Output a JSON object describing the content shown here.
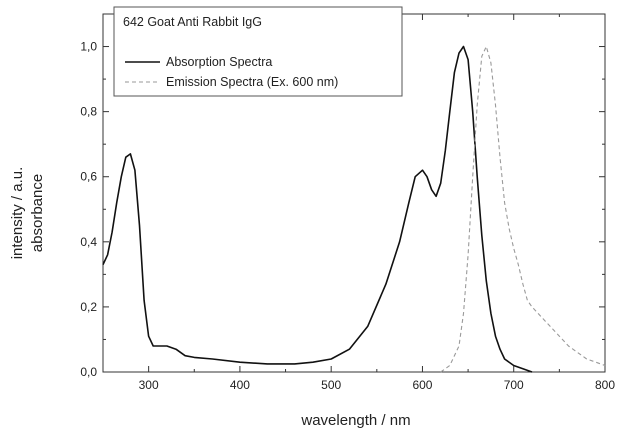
{
  "chart_data": {
    "type": "line",
    "title": "642 Goat Anti Rabbit IgG",
    "xlabel": "wavelength / nm",
    "ylabel": [
      "intensity / a.u.",
      "absorbance"
    ],
    "xlim": [
      250,
      800
    ],
    "ylim": [
      0,
      1.1
    ],
    "x_ticks": [
      "300",
      "400",
      "500",
      "600",
      "700",
      "800"
    ],
    "y_ticks": [
      "0,0",
      "0,2",
      "0,4",
      "0,6",
      "0,8",
      "1,0"
    ],
    "grid": false,
    "legend_position": "top-left",
    "series": [
      {
        "name": "Absorption Spectra",
        "color": "#111111",
        "style": "solid",
        "x": [
          250,
          255,
          260,
          265,
          270,
          275,
          280,
          285,
          290,
          295,
          300,
          305,
          310,
          320,
          330,
          340,
          350,
          370,
          400,
          430,
          460,
          480,
          500,
          520,
          540,
          560,
          575,
          585,
          592,
          600,
          605,
          610,
          615,
          620,
          625,
          630,
          635,
          640,
          645,
          650,
          655,
          660,
          665,
          670,
          675,
          680,
          685,
          690,
          700,
          710,
          720
        ],
        "y": [
          0.33,
          0.36,
          0.43,
          0.52,
          0.6,
          0.66,
          0.67,
          0.62,
          0.45,
          0.22,
          0.11,
          0.08,
          0.08,
          0.08,
          0.07,
          0.05,
          0.045,
          0.04,
          0.03,
          0.025,
          0.025,
          0.03,
          0.04,
          0.07,
          0.14,
          0.27,
          0.4,
          0.52,
          0.6,
          0.62,
          0.6,
          0.56,
          0.54,
          0.58,
          0.68,
          0.8,
          0.92,
          0.98,
          1.0,
          0.96,
          0.8,
          0.6,
          0.42,
          0.28,
          0.18,
          0.11,
          0.07,
          0.04,
          0.02,
          0.01,
          0.0
        ]
      },
      {
        "name": "Emission Spectra (Ex. 600 nm)",
        "color": "#9a9a9a",
        "style": "dashed",
        "x": [
          620,
          630,
          640,
          645,
          650,
          655,
          660,
          665,
          670,
          675,
          680,
          685,
          690,
          695,
          700,
          705,
          710,
          715,
          720,
          730,
          740,
          750,
          760,
          770,
          780,
          790,
          800
        ],
        "y": [
          0.0,
          0.02,
          0.08,
          0.18,
          0.36,
          0.6,
          0.82,
          0.97,
          1.0,
          0.95,
          0.82,
          0.66,
          0.52,
          0.44,
          0.38,
          0.33,
          0.27,
          0.22,
          0.2,
          0.17,
          0.14,
          0.11,
          0.08,
          0.06,
          0.04,
          0.03,
          0.02
        ]
      }
    ]
  }
}
